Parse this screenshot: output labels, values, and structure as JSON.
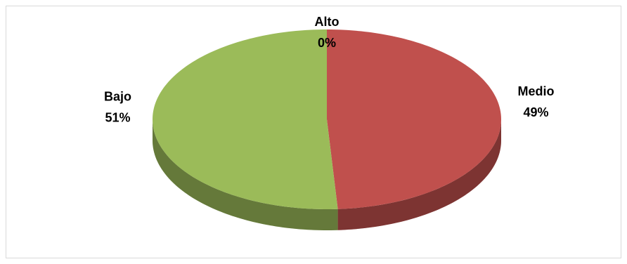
{
  "chart_data": {
    "type": "pie3d",
    "categories": [
      "Alto",
      "Medio",
      "Bajo"
    ],
    "values": [
      0,
      49,
      51
    ],
    "value_labels": [
      "0%",
      "49%",
      "51%"
    ],
    "colors": [
      "#4f81bd",
      "#c0504d",
      "#9bbb59"
    ]
  }
}
